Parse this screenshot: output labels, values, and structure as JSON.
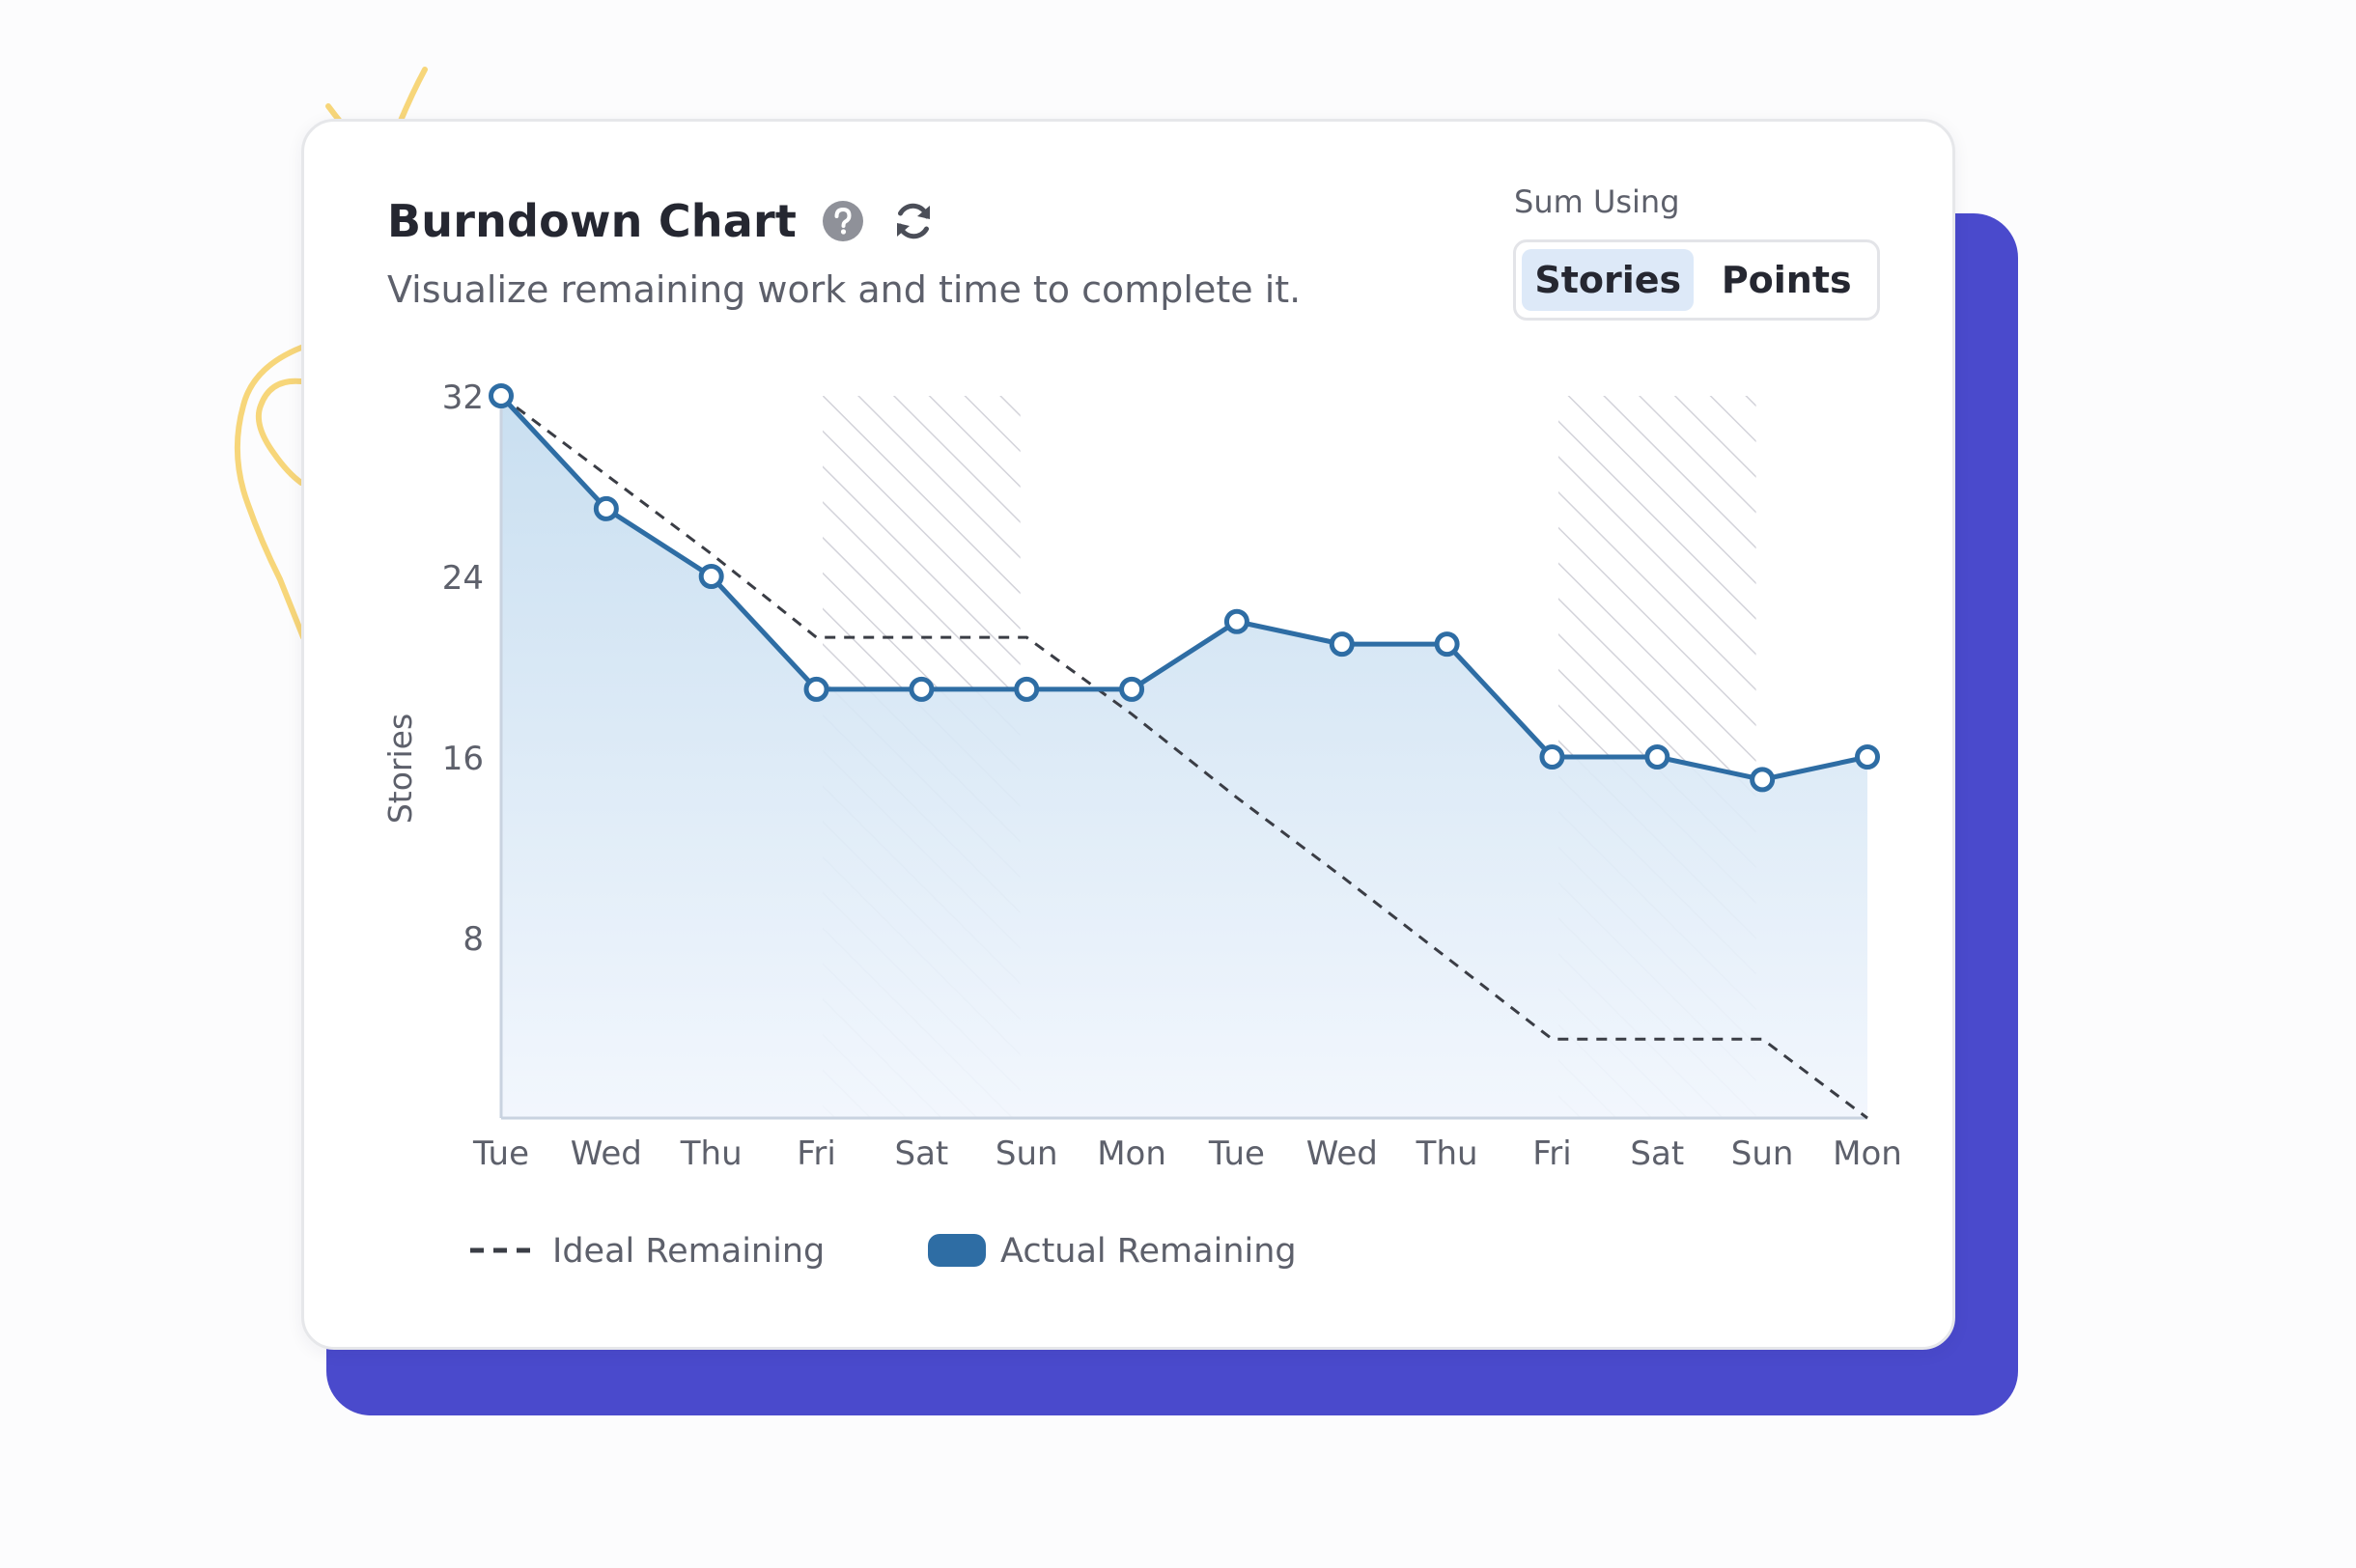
{
  "card": {
    "title": "Burndown Chart",
    "subtitle": "Visualize remaining work and time to complete it.",
    "help_icon": "question-circle-icon",
    "refresh_icon": "refresh-icon"
  },
  "sum_using": {
    "label": "Sum Using",
    "options": [
      "Stories",
      "Points"
    ],
    "selected": "Stories"
  },
  "colors": {
    "actual_line": "#2e6da4",
    "actual_fill_top": "#c4dcef",
    "actual_fill_bottom": "#f1f6fd",
    "ideal_line": "#3a3d45",
    "weekend_hatch": "#d3d3da",
    "backing": "#4a4acc",
    "doodle": "#f7d67a"
  },
  "chart_data": {
    "type": "area",
    "title": "",
    "xlabel": "",
    "ylabel": "Stories",
    "ylim": [
      0,
      32
    ],
    "yticks": [
      8,
      16,
      24,
      32
    ],
    "categories": [
      "Tue",
      "Wed",
      "Thu",
      "Fri",
      "Sat",
      "Sun",
      "Mon",
      "Tue",
      "Wed",
      "Thu",
      "Fri",
      "Sat",
      "Sun",
      "Mon"
    ],
    "weekend_shading": [
      [
        "Fri",
        "Sun"
      ],
      [
        "Fri",
        "Sun"
      ]
    ],
    "series": [
      {
        "name": "Ideal Remaining",
        "style": "dashed",
        "values": [
          32,
          28.5,
          25,
          21.3,
          21.3,
          21.3,
          17.9,
          14.2,
          10.7,
          7.1,
          3.5,
          3.5,
          3.5,
          0
        ]
      },
      {
        "name": "Actual Remaining",
        "style": "solid-area-markers",
        "values": [
          32,
          27,
          24,
          19,
          19,
          19,
          19,
          22,
          21,
          21,
          16,
          16,
          15,
          16
        ]
      }
    ],
    "legend": {
      "position": "bottom-left",
      "entries": [
        "Ideal Remaining",
        "Actual Remaining"
      ]
    }
  }
}
